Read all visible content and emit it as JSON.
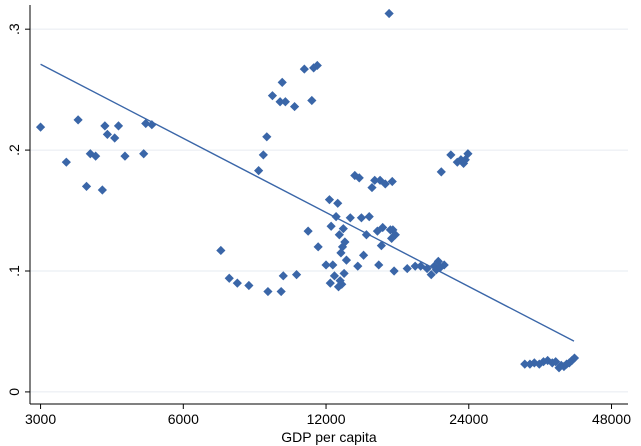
{
  "chart_data": {
    "type": "scatter",
    "xlabel": "GDP per capita",
    "ylabel": "",
    "x_scale": "log",
    "xlim": [
      2850,
      52000
    ],
    "ylim": [
      -0.01,
      0.32
    ],
    "x_ticks": [
      3000,
      6000,
      12000,
      24000,
      48000
    ],
    "x_tick_labels": [
      "3000",
      "6000",
      "12000",
      "24000",
      "48000"
    ],
    "y_ticks": [
      0,
      0.1,
      0.2,
      0.3
    ],
    "y_tick_labels": [
      "0",
      ".1",
      ".2",
      ".3"
    ],
    "grid": "horizontal",
    "colors": {
      "marker": "#3a66a8",
      "fit_line": "#3a66a8",
      "grid": "#e6ebf0"
    },
    "series": [
      {
        "marker": "diamond",
        "points": [
          [
            3000,
            0.219
          ],
          [
            3400,
            0.19
          ],
          [
            3600,
            0.225
          ],
          [
            3750,
            0.17
          ],
          [
            3820,
            0.197
          ],
          [
            3920,
            0.195
          ],
          [
            4050,
            0.167
          ],
          [
            4100,
            0.22
          ],
          [
            4150,
            0.213
          ],
          [
            4300,
            0.21
          ],
          [
            4380,
            0.22
          ],
          [
            4520,
            0.195
          ],
          [
            4950,
            0.197
          ],
          [
            5000,
            0.222
          ],
          [
            5150,
            0.221
          ],
          [
            7200,
            0.117
          ],
          [
            7500,
            0.094
          ],
          [
            7800,
            0.09
          ],
          [
            8250,
            0.088
          ],
          [
            8650,
            0.183
          ],
          [
            8850,
            0.196
          ],
          [
            9000,
            0.211
          ],
          [
            9050,
            0.083
          ],
          [
            9250,
            0.245
          ],
          [
            9600,
            0.24
          ],
          [
            9650,
            0.083
          ],
          [
            9700,
            0.256
          ],
          [
            9750,
            0.096
          ],
          [
            9850,
            0.24
          ],
          [
            10300,
            0.236
          ],
          [
            10400,
            0.097
          ],
          [
            10800,
            0.267
          ],
          [
            11000,
            0.133
          ],
          [
            11200,
            0.241
          ],
          [
            11300,
            0.268
          ],
          [
            11500,
            0.27
          ],
          [
            11550,
            0.12
          ],
          [
            12000,
            0.105
          ],
          [
            12200,
            0.159
          ],
          [
            12250,
            0.09
          ],
          [
            12300,
            0.137
          ],
          [
            12400,
            0.105
          ],
          [
            12500,
            0.096
          ],
          [
            12600,
            0.145
          ],
          [
            12700,
            0.156
          ],
          [
            12750,
            0.087
          ],
          [
            12800,
            0.13
          ],
          [
            12850,
            0.092
          ],
          [
            12900,
            0.115
          ],
          [
            12950,
            0.089
          ],
          [
            13000,
            0.12
          ],
          [
            13050,
            0.135
          ],
          [
            13100,
            0.098
          ],
          [
            13150,
            0.124
          ],
          [
            13250,
            0.109
          ],
          [
            13500,
            0.144
          ],
          [
            13800,
            0.179
          ],
          [
            14000,
            0.104
          ],
          [
            14100,
            0.177
          ],
          [
            14250,
            0.144
          ],
          [
            14400,
            0.113
          ],
          [
            14600,
            0.13
          ],
          [
            14800,
            0.145
          ],
          [
            15000,
            0.169
          ],
          [
            15200,
            0.175
          ],
          [
            15400,
            0.133
          ],
          [
            15500,
            0.105
          ],
          [
            15600,
            0.175
          ],
          [
            15700,
            0.121
          ],
          [
            15800,
            0.136
          ],
          [
            16000,
            0.172
          ],
          [
            16300,
            0.313
          ],
          [
            16400,
            0.134
          ],
          [
            16500,
            0.127
          ],
          [
            16550,
            0.174
          ],
          [
            16600,
            0.134
          ],
          [
            16700,
            0.1
          ],
          [
            16800,
            0.13
          ],
          [
            17800,
            0.102
          ],
          [
            18500,
            0.104
          ],
          [
            19000,
            0.104
          ],
          [
            19600,
            0.102
          ],
          [
            20000,
            0.097
          ],
          [
            20300,
            0.104
          ],
          [
            20500,
            0.101
          ],
          [
            20700,
            0.108
          ],
          [
            20900,
            0.103
          ],
          [
            21000,
            0.182
          ],
          [
            21300,
            0.105
          ],
          [
            22000,
            0.196
          ],
          [
            22700,
            0.19
          ],
          [
            23100,
            0.192
          ],
          [
            23400,
            0.189
          ],
          [
            23600,
            0.192
          ],
          [
            23900,
            0.197
          ],
          [
            31500,
            0.023
          ],
          [
            32300,
            0.023
          ],
          [
            33000,
            0.024
          ],
          [
            33800,
            0.023
          ],
          [
            34500,
            0.025
          ],
          [
            35200,
            0.026
          ],
          [
            36000,
            0.024
          ],
          [
            36600,
            0.025
          ],
          [
            37200,
            0.02
          ],
          [
            37600,
            0.022
          ],
          [
            38100,
            0.021
          ],
          [
            38600,
            0.023
          ],
          [
            39100,
            0.024
          ],
          [
            39600,
            0.026
          ],
          [
            40100,
            0.028
          ]
        ]
      }
    ],
    "fit_line": {
      "x": [
        3000,
        40000
      ],
      "y": [
        0.271,
        0.042
      ]
    }
  }
}
